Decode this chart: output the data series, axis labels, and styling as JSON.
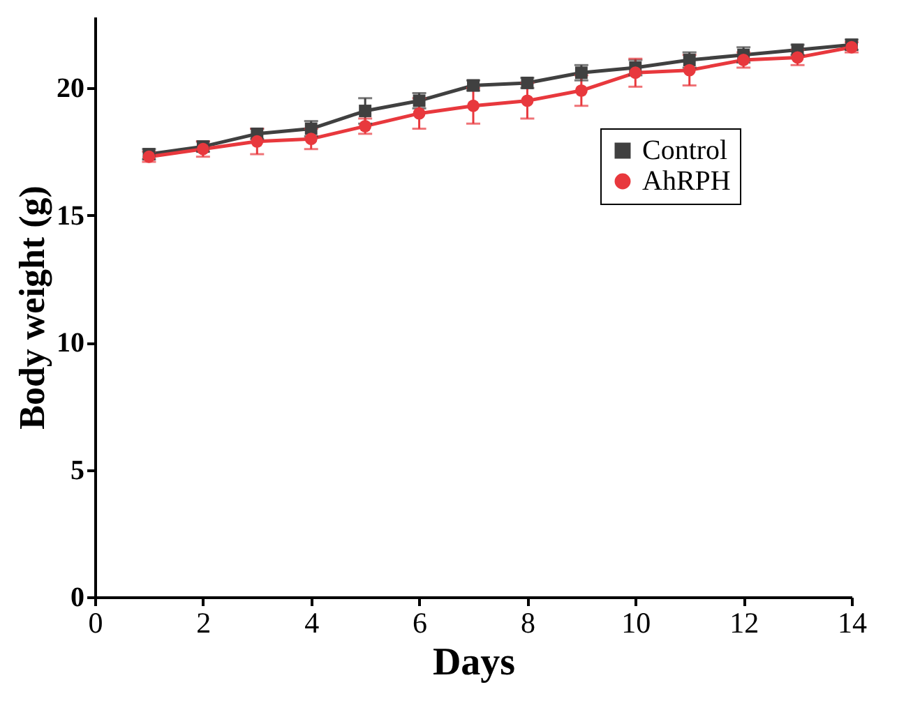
{
  "chart_data": {
    "type": "line",
    "xlabel": "Days",
    "ylabel": "Body weight (g)",
    "x": [
      1,
      2,
      3,
      4,
      5,
      6,
      7,
      8,
      9,
      10,
      11,
      12,
      13,
      14
    ],
    "series": [
      {
        "name": "Control",
        "color": "#404040",
        "marker": "square",
        "values": [
          17.4,
          17.7,
          18.2,
          18.4,
          19.1,
          19.5,
          20.1,
          20.2,
          20.6,
          20.8,
          21.1,
          21.3,
          21.5,
          21.7
        ],
        "errors": [
          0.2,
          0.2,
          0.2,
          0.3,
          0.5,
          0.3,
          0.2,
          0.2,
          0.3,
          0.3,
          0.3,
          0.3,
          0.2,
          0.2
        ]
      },
      {
        "name": "AhRPH",
        "color": "#e8383d",
        "marker": "circle",
        "values": [
          17.3,
          17.6,
          17.9,
          18.0,
          18.5,
          19.0,
          19.3,
          19.5,
          19.9,
          20.6,
          20.7,
          21.1,
          21.2,
          21.6
        ],
        "errors": [
          0.2,
          0.3,
          0.5,
          0.4,
          0.3,
          0.6,
          0.7,
          0.7,
          0.6,
          0.55,
          0.6,
          0.3,
          0.3,
          0.2
        ]
      }
    ],
    "xlim": [
      0,
      14
    ],
    "xticks": [
      0,
      2,
      4,
      6,
      8,
      10,
      12,
      14
    ],
    "ylim": [
      0,
      22.8
    ],
    "yticks": [
      0,
      5,
      10,
      15,
      20
    ],
    "grid": false,
    "legend": "top right",
    "line_style": "solid"
  }
}
